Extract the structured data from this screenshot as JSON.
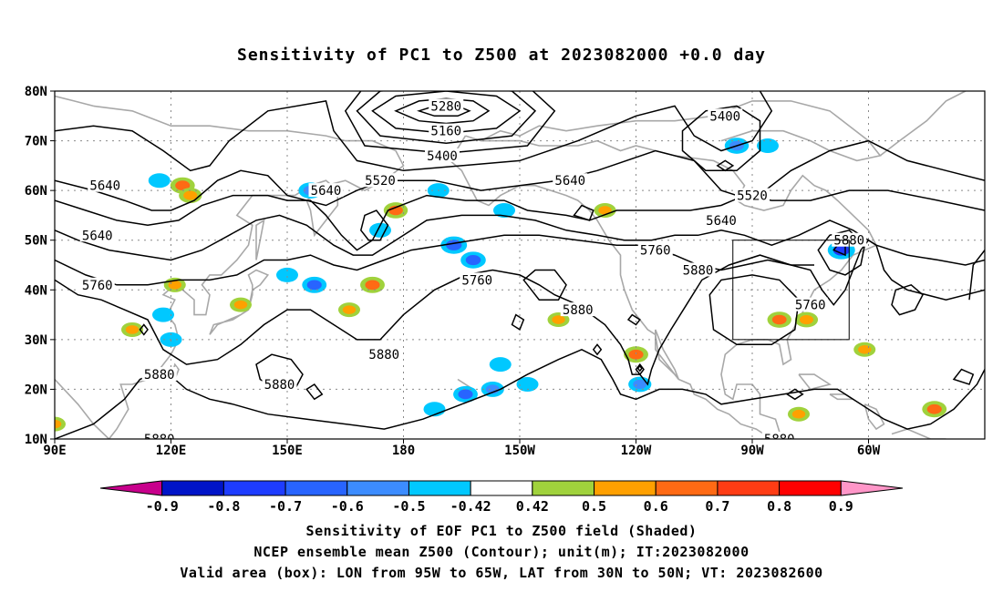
{
  "title": "Sensitivity of PC1 to Z500 at 2023082000 +0.0 day",
  "axes": {
    "lat_labels": [
      "80N",
      "70N",
      "60N",
      "50N",
      "40N",
      "30N",
      "20N",
      "10N"
    ],
    "lon_labels": [
      "90E",
      "120E",
      "150E",
      "180",
      "150W",
      "120W",
      "90W",
      "60W"
    ]
  },
  "contours": {
    "levels": [
      "5160",
      "5280",
      "5400",
      "5520",
      "5640",
      "5760",
      "5880"
    ],
    "labels": [
      {
        "text": "5280",
        "lon": 191,
        "lat": 77
      },
      {
        "text": "5160",
        "lon": 191,
        "lat": 72
      },
      {
        "text": "5400",
        "lon": 190,
        "lat": 67
      },
      {
        "text": "5400",
        "lon": 263,
        "lat": 75
      },
      {
        "text": "5520",
        "lon": 174,
        "lat": 62
      },
      {
        "text": "5640",
        "lon": 103,
        "lat": 61
      },
      {
        "text": "5640",
        "lon": 160,
        "lat": 60
      },
      {
        "text": "5640",
        "lon": 223,
        "lat": 62
      },
      {
        "text": "5520",
        "lon": 270,
        "lat": 59
      },
      {
        "text": "5640",
        "lon": 101,
        "lat": 51
      },
      {
        "text": "5640",
        "lon": 262,
        "lat": 54
      },
      {
        "text": "5760",
        "lon": 101,
        "lat": 41
      },
      {
        "text": "5760",
        "lon": 199,
        "lat": 42
      },
      {
        "text": "5760",
        "lon": 245,
        "lat": 48
      },
      {
        "text": "5880",
        "lon": 256,
        "lat": 44
      },
      {
        "text": "5880",
        "lon": 295,
        "lat": 50
      },
      {
        "text": "5760",
        "lon": 285,
        "lat": 37
      },
      {
        "text": "5880",
        "lon": 225,
        "lat": 36
      },
      {
        "text": "5880",
        "lon": 175,
        "lat": 27
      },
      {
        "text": "5880",
        "lon": 117,
        "lat": 23
      },
      {
        "text": "5880",
        "lon": 148,
        "lat": 21
      },
      {
        "text": "5880",
        "lon": 117,
        "lat": 10
      },
      {
        "text": "5880",
        "lon": 277,
        "lat": 10
      }
    ]
  },
  "valid_area": {
    "lon_range": [
      265,
      295
    ],
    "lat_range": [
      30,
      50
    ]
  },
  "colorbar": {
    "ticks": [
      "-0.9",
      "-0.8",
      "-0.7",
      "-0.6",
      "-0.5",
      "-0.42",
      "0.42",
      "0.5",
      "0.6",
      "0.7",
      "0.8",
      "0.9"
    ],
    "colors": [
      "#c8008c",
      "#0014c8",
      "#1e3cff",
      "#2864ff",
      "#3c8cff",
      "#00c8ff",
      "#ffffff",
      "#a0d23c",
      "#ffa000",
      "#ff6a14",
      "#ff3c14",
      "#ff0000",
      "#ff96c8"
    ]
  },
  "shading": [
    {
      "lon": 123,
      "lat": 61,
      "value": 0.62
    },
    {
      "lon": 125,
      "lat": 59,
      "value": 0.55
    },
    {
      "lon": 117,
      "lat": 62,
      "value": -0.5
    },
    {
      "lon": 156,
      "lat": 60,
      "value": -0.6
    },
    {
      "lon": 178,
      "lat": 56,
      "value": 0.6
    },
    {
      "lon": 174,
      "lat": 52,
      "value": -0.5
    },
    {
      "lon": 189,
      "lat": 60,
      "value": -0.5
    },
    {
      "lon": 193,
      "lat": 49,
      "value": -0.7
    },
    {
      "lon": 198,
      "lat": 46,
      "value": -0.65
    },
    {
      "lon": 206,
      "lat": 56,
      "value": -0.5
    },
    {
      "lon": 266,
      "lat": 69,
      "value": -0.6
    },
    {
      "lon": 274,
      "lat": 69,
      "value": -0.5
    },
    {
      "lon": 293,
      "lat": 48,
      "value": -0.75
    },
    {
      "lon": 172,
      "lat": 41,
      "value": 0.62
    },
    {
      "lon": 157,
      "lat": 41,
      "value": -0.62
    },
    {
      "lon": 150,
      "lat": 43,
      "value": -0.5
    },
    {
      "lon": 121,
      "lat": 41,
      "value": 0.5
    },
    {
      "lon": 138,
      "lat": 37,
      "value": 0.5
    },
    {
      "lon": 118,
      "lat": 35,
      "value": -0.5
    },
    {
      "lon": 120,
      "lat": 30,
      "value": -0.5
    },
    {
      "lon": 90,
      "lat": 13,
      "value": 0.5
    },
    {
      "lon": 110,
      "lat": 32,
      "value": 0.5
    },
    {
      "lon": 240,
      "lat": 27,
      "value": 0.62
    },
    {
      "lon": 241,
      "lat": 21,
      "value": -0.55
    },
    {
      "lon": 277,
      "lat": 34,
      "value": 0.6
    },
    {
      "lon": 284,
      "lat": 34,
      "value": 0.55
    },
    {
      "lon": 299,
      "lat": 28,
      "value": 0.5
    },
    {
      "lon": 317,
      "lat": 16,
      "value": 0.62
    },
    {
      "lon": 282,
      "lat": 15,
      "value": 0.5
    },
    {
      "lon": 196,
      "lat": 19,
      "value": -0.62
    },
    {
      "lon": 203,
      "lat": 20,
      "value": -0.55
    },
    {
      "lon": 212,
      "lat": 21,
      "value": -0.5
    },
    {
      "lon": 188,
      "lat": 16,
      "value": -0.5
    },
    {
      "lon": 205,
      "lat": 25,
      "value": -0.5
    },
    {
      "lon": 232,
      "lat": 56,
      "value": 0.5
    },
    {
      "lon": 220,
      "lat": 34,
      "value": 0.5
    },
    {
      "lon": 166,
      "lat": 36,
      "value": 0.5
    }
  ],
  "captions": {
    "line1": "Sensitivity of EOF PC1 to Z500 field (Shaded)",
    "line2": "NCEP ensemble mean Z500 (Contour); unit(m); IT:2023082000",
    "line3": "Valid area (box): LON from 95W to 65W, LAT from 30N to 50N; VT: 2023082600"
  }
}
